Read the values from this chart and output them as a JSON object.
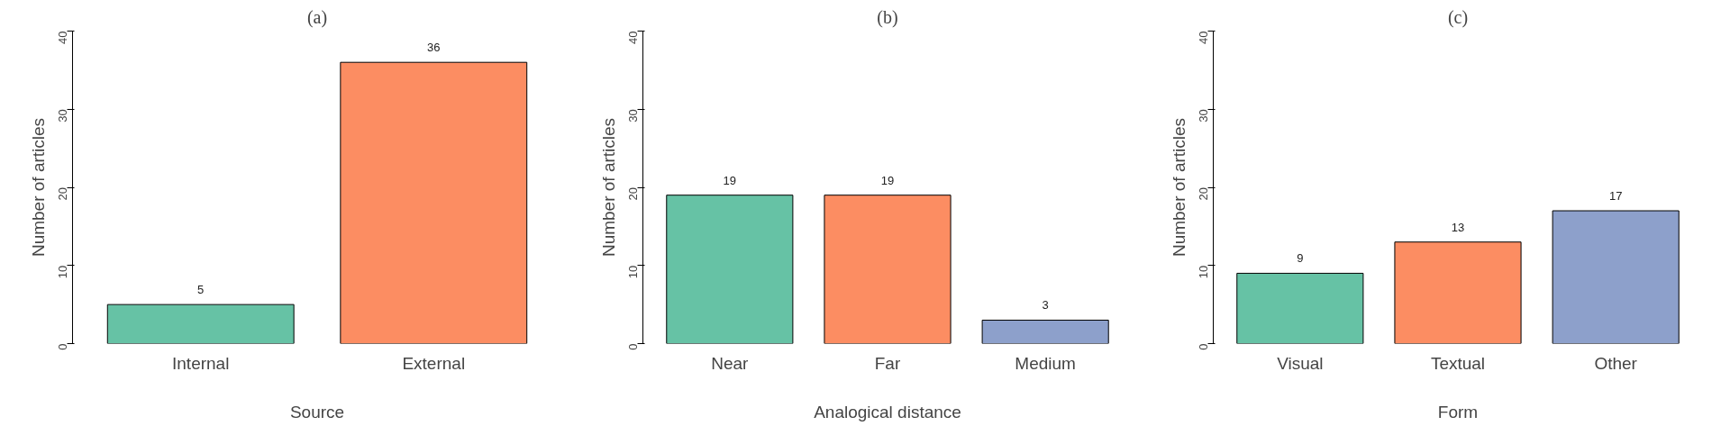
{
  "chart_data": [
    {
      "type": "bar",
      "title": "(a)",
      "xlabel": "Source",
      "ylabel": "Number of articles",
      "categories": [
        "Internal",
        "External"
      ],
      "values": [
        5,
        36
      ],
      "colors": [
        "#66c2a5",
        "#fc8d62"
      ],
      "ylim": [
        0,
        40
      ],
      "yticks": [
        0,
        10,
        20,
        30,
        40
      ],
      "data_labels": true
    },
    {
      "type": "bar",
      "title": "(b)",
      "xlabel": "Analogical distance",
      "ylabel": "Number of articles",
      "categories": [
        "Near",
        "Far",
        "Medium"
      ],
      "values": [
        19,
        19,
        3
      ],
      "colors": [
        "#66c2a5",
        "#fc8d62",
        "#8da0cb"
      ],
      "ylim": [
        0,
        40
      ],
      "yticks": [
        0,
        10,
        20,
        30,
        40
      ],
      "data_labels": true
    },
    {
      "type": "bar",
      "title": "(c)",
      "xlabel": "Form",
      "ylabel": "Number of articles",
      "categories": [
        "Visual",
        "Textual",
        "Other"
      ],
      "values": [
        9,
        13,
        17
      ],
      "colors": [
        "#66c2a5",
        "#fc8d62",
        "#8da0cb"
      ],
      "ylim": [
        0,
        40
      ],
      "yticks": [
        0,
        10,
        20,
        30,
        40
      ],
      "data_labels": true
    }
  ]
}
